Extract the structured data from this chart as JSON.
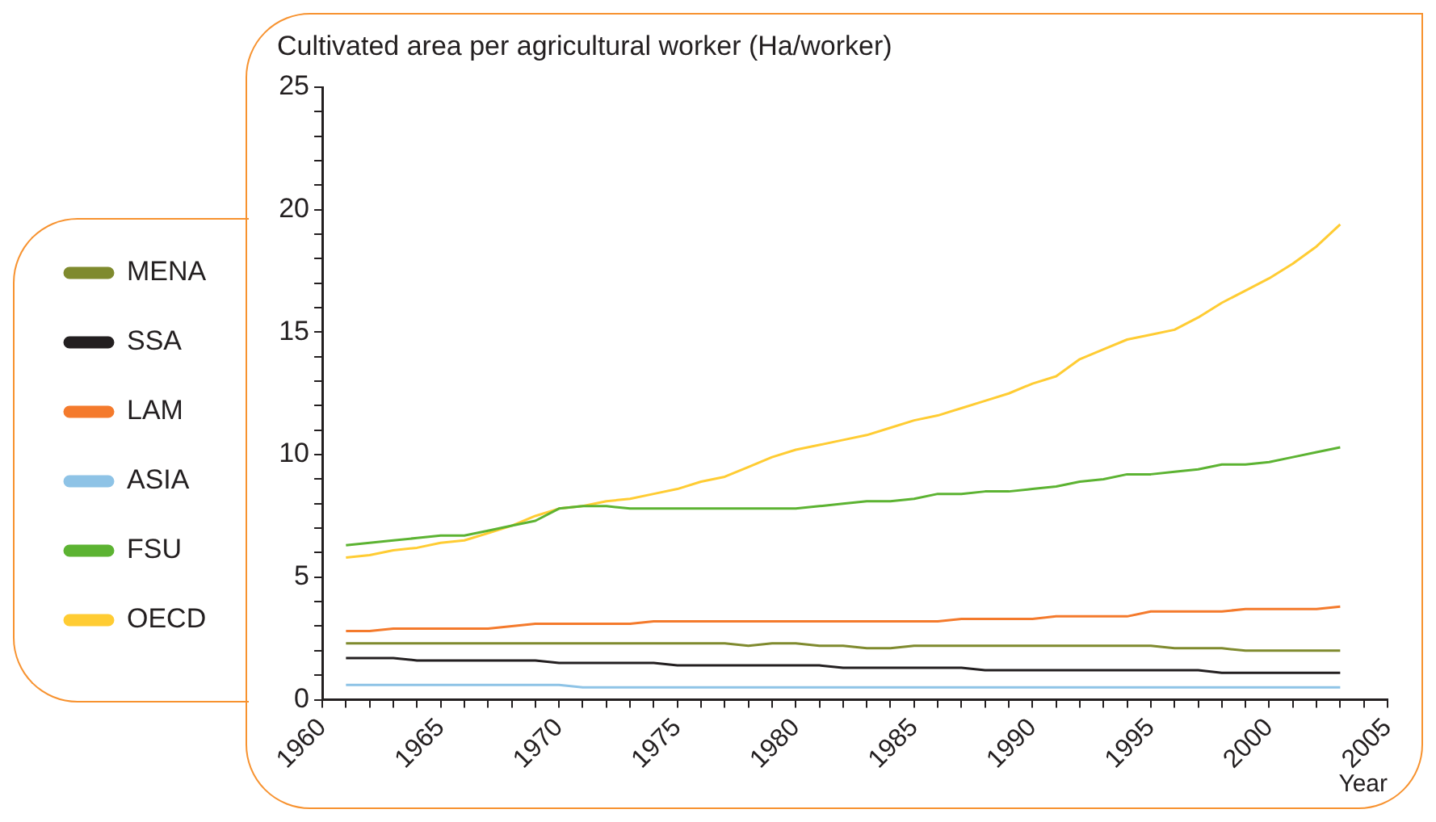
{
  "chart_data": {
    "type": "line",
    "ylabel": "Cultivated area per agricultural worker (Ha/worker)",
    "xlabel": "Year",
    "x": [
      1961,
      1962,
      1963,
      1964,
      1965,
      1966,
      1967,
      1968,
      1969,
      1970,
      1971,
      1972,
      1973,
      1974,
      1975,
      1976,
      1977,
      1978,
      1979,
      1980,
      1981,
      1982,
      1983,
      1984,
      1985,
      1986,
      1987,
      1988,
      1989,
      1990,
      1991,
      1992,
      1993,
      1994,
      1995,
      1996,
      1997,
      1998,
      1999,
      2000,
      2001,
      2002,
      2003
    ],
    "series": [
      {
        "name": "MENA",
        "color": "#7f8a2e",
        "values": [
          2.3,
          2.3,
          2.3,
          2.3,
          2.3,
          2.3,
          2.3,
          2.3,
          2.3,
          2.3,
          2.3,
          2.3,
          2.3,
          2.3,
          2.3,
          2.3,
          2.3,
          2.2,
          2.3,
          2.3,
          2.2,
          2.2,
          2.1,
          2.1,
          2.2,
          2.2,
          2.2,
          2.2,
          2.2,
          2.2,
          2.2,
          2.2,
          2.2,
          2.2,
          2.2,
          2.1,
          2.1,
          2.1,
          2.0,
          2.0,
          2.0,
          2.0,
          2.0
        ]
      },
      {
        "name": "SSA",
        "color": "#231f20",
        "values": [
          1.7,
          1.7,
          1.7,
          1.6,
          1.6,
          1.6,
          1.6,
          1.6,
          1.6,
          1.5,
          1.5,
          1.5,
          1.5,
          1.5,
          1.4,
          1.4,
          1.4,
          1.4,
          1.4,
          1.4,
          1.4,
          1.3,
          1.3,
          1.3,
          1.3,
          1.3,
          1.3,
          1.2,
          1.2,
          1.2,
          1.2,
          1.2,
          1.2,
          1.2,
          1.2,
          1.2,
          1.2,
          1.1,
          1.1,
          1.1,
          1.1,
          1.1,
          1.1
        ]
      },
      {
        "name": "LAM",
        "color": "#f47a2c",
        "values": [
          2.8,
          2.8,
          2.9,
          2.9,
          2.9,
          2.9,
          2.9,
          3.0,
          3.1,
          3.1,
          3.1,
          3.1,
          3.1,
          3.2,
          3.2,
          3.2,
          3.2,
          3.2,
          3.2,
          3.2,
          3.2,
          3.2,
          3.2,
          3.2,
          3.2,
          3.2,
          3.3,
          3.3,
          3.3,
          3.3,
          3.4,
          3.4,
          3.4,
          3.4,
          3.6,
          3.6,
          3.6,
          3.6,
          3.7,
          3.7,
          3.7,
          3.7,
          3.8
        ]
      },
      {
        "name": "ASIA",
        "color": "#8ec3e6",
        "values": [
          0.6,
          0.6,
          0.6,
          0.6,
          0.6,
          0.6,
          0.6,
          0.6,
          0.6,
          0.6,
          0.5,
          0.5,
          0.5,
          0.5,
          0.5,
          0.5,
          0.5,
          0.5,
          0.5,
          0.5,
          0.5,
          0.5,
          0.5,
          0.5,
          0.5,
          0.5,
          0.5,
          0.5,
          0.5,
          0.5,
          0.5,
          0.5,
          0.5,
          0.5,
          0.5,
          0.5,
          0.5,
          0.5,
          0.5,
          0.5,
          0.5,
          0.5,
          0.5
        ]
      },
      {
        "name": "FSU",
        "color": "#5cb332",
        "values": [
          6.3,
          6.4,
          6.5,
          6.6,
          6.7,
          6.7,
          6.9,
          7.1,
          7.3,
          7.8,
          7.9,
          7.9,
          7.8,
          7.8,
          7.8,
          7.8,
          7.8,
          7.8,
          7.8,
          7.8,
          7.9,
          8.0,
          8.1,
          8.1,
          8.2,
          8.4,
          8.4,
          8.5,
          8.5,
          8.6,
          8.7,
          8.9,
          9.0,
          9.2,
          9.2,
          9.3,
          9.4,
          9.6,
          9.6,
          9.7,
          9.9,
          10.1,
          10.3
        ]
      },
      {
        "name": "OECD",
        "color": "#ffcc33",
        "values": [
          5.8,
          5.9,
          6.1,
          6.2,
          6.4,
          6.5,
          6.8,
          7.1,
          7.5,
          7.8,
          7.9,
          8.1,
          8.2,
          8.4,
          8.6,
          8.9,
          9.1,
          9.5,
          9.9,
          10.2,
          10.4,
          10.6,
          10.8,
          11.1,
          11.4,
          11.6,
          11.9,
          12.2,
          12.5,
          12.9,
          13.2,
          13.9,
          14.3,
          14.7,
          14.9,
          15.1,
          15.6,
          16.2,
          16.7,
          17.2,
          17.8,
          18.5,
          19.4
        ]
      }
    ],
    "xlim": [
      1960,
      2005
    ],
    "xticks": [
      1960,
      {
        "value": 1961,
        "label": null
      },
      {
        "value": 1962,
        "label": null
      },
      {
        "value": 1963,
        "label": null
      },
      {
        "value": 1964,
        "label": null
      },
      1965,
      {
        "value": 1966,
        "label": null
      },
      {
        "value": 1967,
        "label": null
      },
      {
        "value": 1968,
        "label": null
      },
      {
        "value": 1969,
        "label": null
      },
      1970,
      {
        "value": 1971,
        "label": null
      },
      {
        "value": 1972,
        "label": null
      },
      {
        "value": 1973,
        "label": null
      },
      {
        "value": 1974,
        "label": null
      },
      1975,
      {
        "value": 1976,
        "label": null
      },
      {
        "value": 1977,
        "label": null
      },
      {
        "value": 1978,
        "label": null
      },
      {
        "value": 1979,
        "label": null
      },
      1980,
      {
        "value": 1981,
        "label": null
      },
      {
        "value": 1982,
        "label": null
      },
      {
        "value": 1983,
        "label": null
      },
      {
        "value": 1984,
        "label": null
      },
      1985,
      {
        "value": 1986,
        "label": null
      },
      {
        "value": 1987,
        "label": null
      },
      {
        "value": 1988,
        "label": null
      },
      {
        "value": 1989,
        "label": null
      },
      1990,
      {
        "value": 1991,
        "label": null
      },
      {
        "value": 1992,
        "label": null
      },
      {
        "value": 1993,
        "label": null
      },
      {
        "value": 1994,
        "label": null
      },
      1995,
      {
        "value": 1996,
        "label": null
      },
      {
        "value": 1997,
        "label": null
      },
      {
        "value": 1998,
        "label": null
      },
      {
        "value": 1999,
        "label": null
      },
      2000,
      {
        "value": 2001,
        "label": null
      },
      {
        "value": 2002,
        "label": null
      },
      {
        "value": 2003,
        "label": null
      },
      {
        "value": 2004,
        "label": null
      },
      2005
    ],
    "ylim": [
      0,
      25
    ],
    "yticks": [
      0,
      {
        "value": 1,
        "label": null
      },
      {
        "value": 2,
        "label": null
      },
      {
        "value": 3,
        "label": null
      },
      {
        "value": 4,
        "label": null
      },
      5,
      {
        "value": 6,
        "label": null
      },
      {
        "value": 7,
        "label": null
      },
      {
        "value": 8,
        "label": null
      },
      {
        "value": 9,
        "label": null
      },
      10,
      {
        "value": 11,
        "label": null
      },
      {
        "value": 12,
        "label": null
      },
      {
        "value": 13,
        "label": null
      },
      {
        "value": 14,
        "label": null
      },
      15,
      {
        "value": 16,
        "label": null
      },
      {
        "value": 17,
        "label": null
      },
      {
        "value": 18,
        "label": null
      },
      {
        "value": 19,
        "label": null
      },
      20,
      {
        "value": 21,
        "label": null
      },
      {
        "value": 22,
        "label": null
      },
      {
        "value": 23,
        "label": null
      },
      {
        "value": 24,
        "label": null
      },
      25
    ],
    "grid": false,
    "legend": "left",
    "marker": "none",
    "line_style": "solid"
  }
}
